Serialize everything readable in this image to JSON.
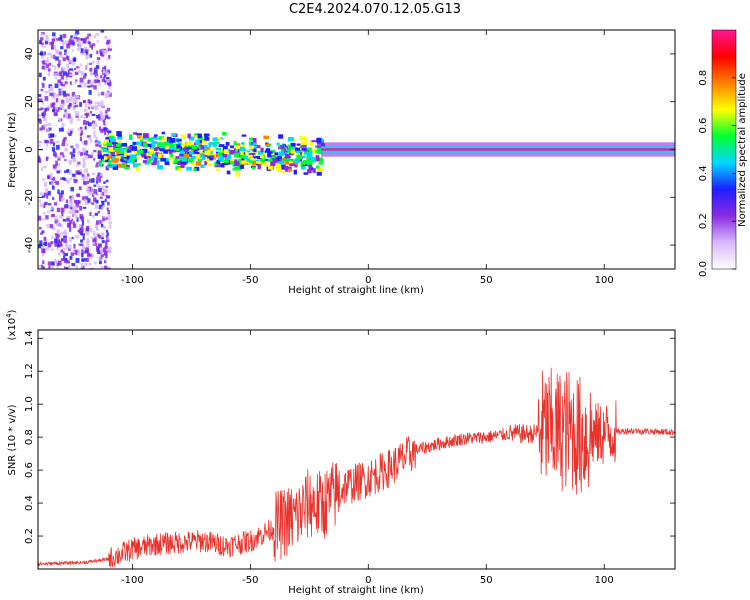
{
  "title": "C2E4.2024.070.12.05.G13",
  "colors": {
    "snr_line": "#e8322c",
    "grid": "#000000"
  },
  "chart_data": [
    {
      "type": "heatmap",
      "xlabel": "Height of straight line (km)",
      "ylabel": "Frequency (Hz)",
      "xlim": [
        -140,
        130
      ],
      "ylim": [
        -50,
        50
      ],
      "x_ticks": [
        -100,
        -50,
        0,
        50,
        100
      ],
      "y_ticks": [
        -40,
        -20,
        0,
        20,
        40
      ],
      "colorbar": {
        "label": "Normalized spectral amplitude",
        "range": [
          0,
          1
        ],
        "ticks": [
          0.0,
          0.2,
          0.4,
          0.6,
          0.8
        ],
        "tick_labels": [
          "0.0",
          "0.2",
          "0.4",
          "0.6",
          "0.8"
        ],
        "colormap": [
          "#ffffff",
          "#d8b8ff",
          "#8a2be2",
          "#1e1eff",
          "#00d8ff",
          "#00ff30",
          "#ffff00",
          "#ff8000",
          "#ff0000",
          "#ff1493"
        ]
      },
      "features": [
        {
          "x_range": [
            -140,
            -110
          ],
          "freq_range": [
            -50,
            50
          ],
          "amplitude": 0.2
        },
        {
          "x_range": [
            -115,
            -20
          ],
          "freq_range": [
            -8,
            8
          ],
          "amplitude": 0.5
        },
        {
          "x_range": [
            -20,
            130
          ],
          "freq_range": [
            -1,
            1
          ],
          "amplitude": 0.95
        }
      ]
    },
    {
      "type": "line",
      "xlabel": "Height of straight line (km)",
      "ylabel": "SNR (10 * v/v)",
      "scale_label": "(x10",
      "scale_exp": "4",
      "scale_close": ")",
      "xlim": [
        -140,
        130
      ],
      "ylim": [
        0,
        1.45
      ],
      "x_ticks": [
        -100,
        -50,
        0,
        50,
        100
      ],
      "y_ticks": [
        0.2,
        0.4,
        0.6,
        0.8,
        1.0,
        1.2,
        1.4
      ],
      "series": [
        {
          "values_x": [
            -140,
            -120,
            -110,
            -100,
            -90,
            -80,
            -70,
            -60,
            -50,
            -40,
            -30,
            -25,
            -20,
            -15,
            -10,
            0,
            10,
            20,
            30,
            40,
            50,
            60,
            70,
            75,
            80,
            85,
            90,
            100,
            110,
            130
          ],
          "values_y": [
            0.03,
            0.04,
            0.06,
            0.12,
            0.15,
            0.16,
            0.17,
            0.14,
            0.17,
            0.25,
            0.32,
            0.4,
            0.38,
            0.44,
            0.5,
            0.55,
            0.62,
            0.72,
            0.76,
            0.79,
            0.8,
            0.82,
            0.82,
            0.85,
            0.84,
            0.85,
            0.8,
            0.82,
            0.84,
            0.83
          ],
          "color": "#e8322c"
        }
      ]
    }
  ]
}
